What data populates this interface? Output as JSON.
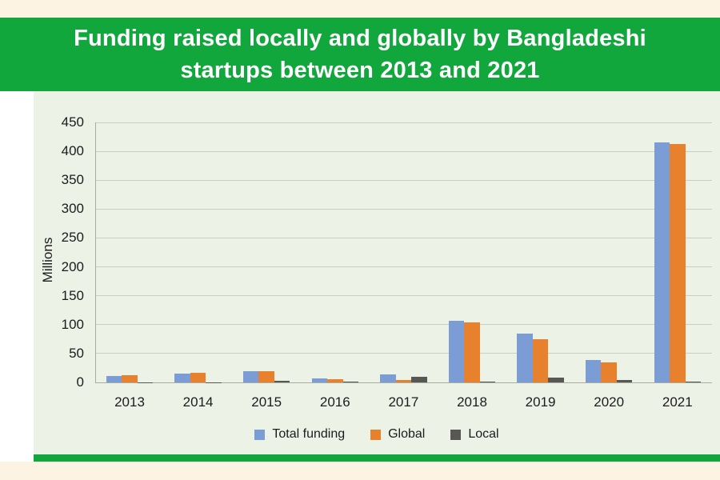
{
  "banner": {
    "title_lines": [
      "Funding raised locally and globally by Bangladeshi",
      "startups between 2013 and 2021"
    ]
  },
  "chart_data": {
    "type": "bar",
    "title": "Funding raised locally and globally by Bangladeshi startups between 2013 and 2021",
    "ylabel": "Millions",
    "xlabel": "",
    "categories": [
      "2013",
      "2014",
      "2015",
      "2016",
      "2017",
      "2018",
      "2019",
      "2020",
      "2021"
    ],
    "series": [
      {
        "name": "Total funding",
        "color": "#7b9cd4",
        "values": [
          11,
          15,
          19,
          7,
          14,
          106,
          84,
          39,
          415
        ]
      },
      {
        "name": "Global",
        "color": "#e8812d",
        "values": [
          12,
          16,
          20,
          6,
          4,
          104,
          75,
          35,
          413
        ]
      },
      {
        "name": "Local",
        "color": "#575756",
        "values": [
          0.5,
          0.5,
          3,
          2,
          10,
          2,
          8,
          4,
          2
        ]
      }
    ],
    "ylim": [
      0,
      450
    ],
    "ytick_interval": 50,
    "grid": true,
    "legend_position": "bottom"
  },
  "colors": {
    "background_cream": "#fdf3e3",
    "banner_green": "#11a73c",
    "panel_background": "#edf2e7",
    "bottom_strip_green": "#11a73c",
    "corner_triangle": "#0d0b0a",
    "bar_total_funding": "#7b9cd4",
    "bar_global": "#e8812d",
    "bar_local": "#575756",
    "gridline": "#c9cec2",
    "axis_line": "#a8ad9f",
    "tick_text": "#1c1c1c",
    "title_text": "#ffffff"
  }
}
